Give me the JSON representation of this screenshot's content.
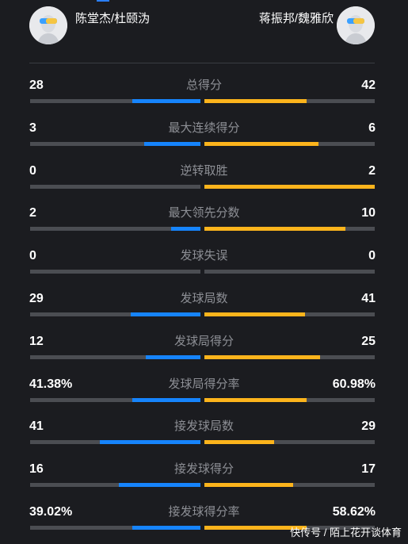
{
  "header": {
    "left_team": "陈堂杰/杜颐沩",
    "right_team": "蒋振邦/魏雅欣"
  },
  "colors": {
    "left_accent": "#1684fc",
    "right_accent": "#fcb41c",
    "track": "#4b4d52",
    "background": "#1b1c20"
  },
  "stats": [
    {
      "label": "总得分",
      "left": "28",
      "right": "42",
      "left_share": 0.4,
      "right_share": 0.6
    },
    {
      "label": "最大连续得分",
      "left": "3",
      "right": "6",
      "left_share": 0.33,
      "right_share": 0.67
    },
    {
      "label": "逆转取胜",
      "left": "0",
      "right": "2",
      "left_share": 0,
      "right_share": 1.0
    },
    {
      "label": "最大领先分数",
      "left": "2",
      "right": "10",
      "left_share": 0.17,
      "right_share": 0.83
    },
    {
      "label": "发球失误",
      "left": "0",
      "right": "0",
      "left_share": 0,
      "right_share": 0
    },
    {
      "label": "发球局数",
      "left": "29",
      "right": "41",
      "left_share": 0.41,
      "right_share": 0.59
    },
    {
      "label": "发球局得分",
      "left": "12",
      "right": "25",
      "left_share": 0.32,
      "right_share": 0.68
    },
    {
      "label": "发球局得分率",
      "left": "41.38%",
      "right": "60.98%",
      "left_share": 0.4,
      "right_share": 0.6
    },
    {
      "label": "接发球局数",
      "left": "41",
      "right": "29",
      "left_share": 0.59,
      "right_share": 0.41
    },
    {
      "label": "接发球得分",
      "left": "16",
      "right": "17",
      "left_share": 0.48,
      "right_share": 0.52
    },
    {
      "label": "接发球得分率",
      "left": "39.02%",
      "right": "58.62%",
      "left_share": 0.4,
      "right_share": 0.6
    }
  ],
  "watermark": "快传号 / 陌上花开谈体育"
}
